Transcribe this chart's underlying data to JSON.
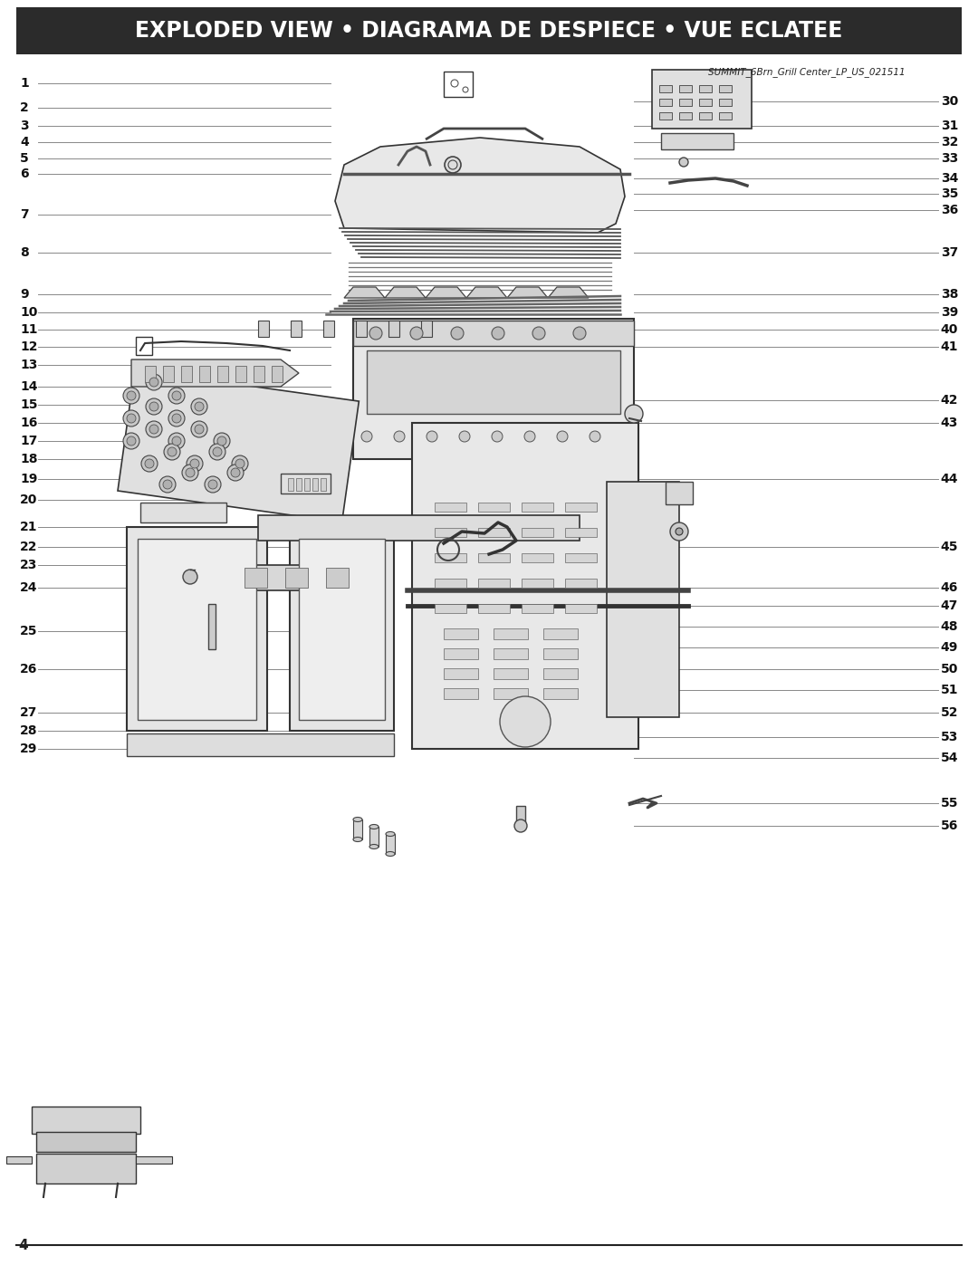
{
  "title": "EXPLODED VIEW • DIAGRAMA DE DESPIECE • VUE ECLATEE",
  "title_bg": "#2b2b2b",
  "title_color": "#ffffff",
  "title_fontsize": 17,
  "subtitle": "SUMMIT_6Brn_Grill Center_LP_US_021511",
  "page_number": "4",
  "bg_color": "#ffffff",
  "left_labels": [
    1,
    2,
    3,
    4,
    5,
    6,
    7,
    8,
    9,
    10,
    11,
    12,
    13,
    14,
    15,
    16,
    17,
    18,
    19,
    20,
    21,
    22,
    23,
    24,
    25,
    26,
    27,
    28,
    29
  ],
  "right_labels": [
    30,
    31,
    32,
    33,
    34,
    35,
    36,
    37,
    38,
    39,
    40,
    41,
    42,
    43,
    44,
    45,
    46,
    47,
    48,
    49,
    50,
    51,
    52,
    53,
    54,
    55,
    56
  ],
  "line_color": "#888888",
  "label_fontsize": 10,
  "label_font_weight": "bold"
}
